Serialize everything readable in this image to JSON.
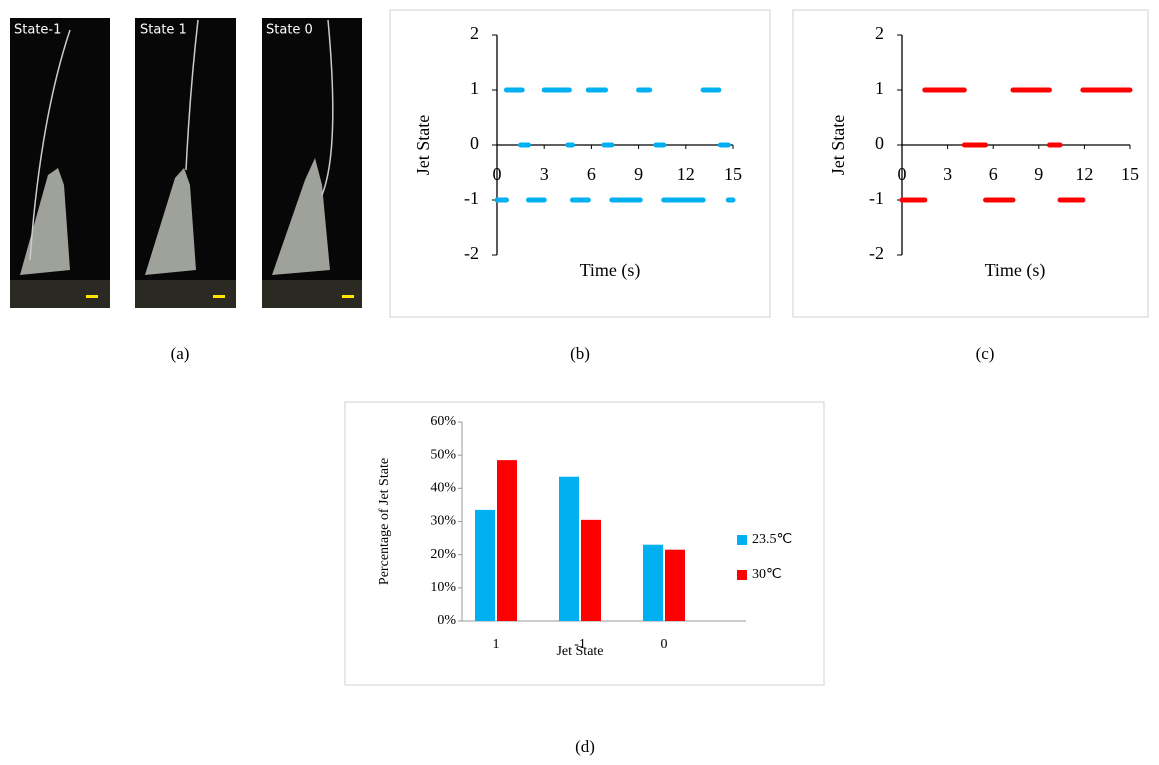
{
  "photos": {
    "labels": [
      "State-1",
      "State 1",
      "State 0"
    ],
    "caption": "(a)"
  },
  "chart_data": [
    {
      "type": "segment",
      "caption": "(b)",
      "xlabel": "Time (s)",
      "ylabel": "Jet State",
      "color": "#00b0f0",
      "xlim": [
        0,
        15
      ],
      "xticks": [
        0,
        3,
        6,
        9,
        12,
        15
      ],
      "ylim": [
        -2,
        2
      ],
      "yticks": [
        -2,
        -1,
        0,
        1,
        2
      ],
      "segments": [
        {
          "state": 1,
          "start": 0.6,
          "end": 1.6
        },
        {
          "state": 1,
          "start": 3.0,
          "end": 4.6
        },
        {
          "state": 1,
          "start": 5.8,
          "end": 6.9
        },
        {
          "state": 1,
          "start": 9.0,
          "end": 9.7
        },
        {
          "state": 1,
          "start": 13.1,
          "end": 14.1
        },
        {
          "state": 0,
          "start": 1.5,
          "end": 2.0
        },
        {
          "state": 0,
          "start": 4.5,
          "end": 4.8
        },
        {
          "state": 0,
          "start": 6.8,
          "end": 7.3
        },
        {
          "state": 0,
          "start": 10.1,
          "end": 10.6
        },
        {
          "state": 0,
          "start": 14.2,
          "end": 14.7
        },
        {
          "state": -1,
          "start": 0,
          "end": 0.6
        },
        {
          "state": -1,
          "start": 2.0,
          "end": 3.0
        },
        {
          "state": -1,
          "start": 4.8,
          "end": 5.8
        },
        {
          "state": -1,
          "start": 7.3,
          "end": 9.1
        },
        {
          "state": -1,
          "start": 10.6,
          "end": 13.1
        },
        {
          "state": -1,
          "start": 14.7,
          "end": 15
        }
      ]
    },
    {
      "type": "segment",
      "caption": "(c)",
      "xlabel": "Time (s)",
      "ylabel": "Jet State",
      "color": "#ff0000",
      "xlim": [
        0,
        15
      ],
      "xticks": [
        0,
        3,
        6,
        9,
        12,
        15
      ],
      "ylim": [
        -2,
        2
      ],
      "yticks": [
        -2,
        -1,
        0,
        1,
        2
      ],
      "segments": [
        {
          "state": 1,
          "start": 1.5,
          "end": 4.1
        },
        {
          "state": 1,
          "start": 7.3,
          "end": 9.7
        },
        {
          "state": 1,
          "start": 11.9,
          "end": 15
        },
        {
          "state": 0,
          "start": 4.1,
          "end": 5.5
        },
        {
          "state": 0,
          "start": 9.7,
          "end": 10.4
        },
        {
          "state": -1,
          "start": 0,
          "end": 1.5
        },
        {
          "state": -1,
          "start": 5.5,
          "end": 7.3
        },
        {
          "state": -1,
          "start": 10.4,
          "end": 11.9
        }
      ]
    },
    {
      "type": "bar",
      "caption": "(d)",
      "xlabel": "Jet State",
      "ylabel": "Percentage of Jet State",
      "categories": [
        "1",
        "-1",
        "0"
      ],
      "series": [
        {
          "name": "23.5℃",
          "color": "#00b0f0",
          "values": [
            33.5,
            43.5,
            23
          ]
        },
        {
          "name": "30℃",
          "color": "#ff0000",
          "values": [
            48.5,
            30.5,
            21.5
          ]
        }
      ],
      "ylim": [
        0,
        60
      ],
      "yticks": [
        {
          "value": 0,
          "label": "0%"
        },
        {
          "value": 10,
          "label": "10%"
        },
        {
          "value": 20,
          "label": "20%"
        },
        {
          "value": 30,
          "label": "30%"
        },
        {
          "value": 40,
          "label": "40%"
        },
        {
          "value": 50,
          "label": "50%"
        },
        {
          "value": 60,
          "label": "60%"
        }
      ]
    }
  ]
}
